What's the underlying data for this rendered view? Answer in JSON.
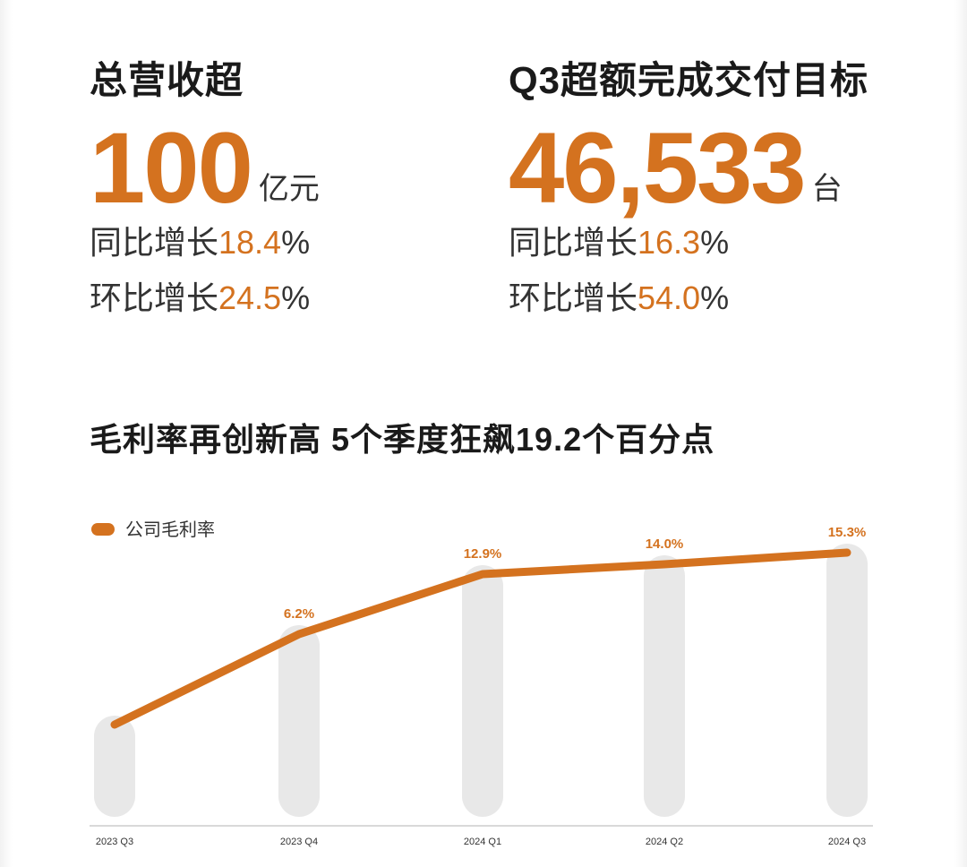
{
  "revenue": {
    "title": "总营收超",
    "value": "100",
    "unit": "亿元",
    "yoy_label": "同比增长",
    "yoy_value": "18.4",
    "yoy_pct": "%",
    "qoq_label": "环比增长",
    "qoq_value": "24.5",
    "qoq_pct": "%"
  },
  "deliveries": {
    "title": "Q3超额完成交付目标",
    "value": "46,533",
    "unit": "台",
    "yoy_label": "同比增长",
    "yoy_value": "16.3",
    "yoy_pct": "%",
    "qoq_label": "环比增长",
    "qoq_value": "54.0",
    "qoq_pct": "%"
  },
  "section_title": "毛利率再创新高 5个季度狂飙19.2个百分点",
  "colors": {
    "accent": "#d4721f",
    "bar": "#e8e8e8",
    "axis": "#d9d9d9",
    "text": "#1a1a1a"
  },
  "chart_data": {
    "type": "line",
    "categories": [
      "2023 Q3",
      "2023 Q4",
      "2024 Q1",
      "2024 Q2",
      "2024 Q3"
    ],
    "series": [
      {
        "name": "公司毛利率",
        "values": [
          -3.9,
          6.2,
          12.9,
          14.0,
          15.3
        ],
        "data_labels": [
          "",
          "6.2%",
          "12.9%",
          "14.0%",
          "15.3%"
        ]
      }
    ],
    "ylim": [
      -8,
      17
    ],
    "legend": "top-left",
    "grid": false
  }
}
